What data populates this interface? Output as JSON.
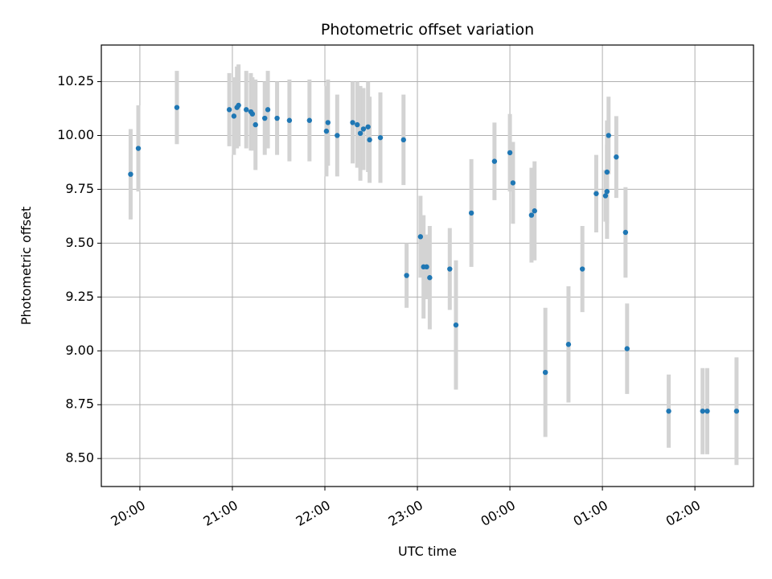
{
  "chart_data": {
    "type": "scatter",
    "title": "Photometric offset variation",
    "xlabel": "UTC time",
    "ylabel": "Photometric offset",
    "grid": true,
    "x_ticks": [
      "20:00",
      "21:00",
      "22:00",
      "23:00",
      "00:00",
      "01:00",
      "02:00"
    ],
    "y_ticks": [
      "8.50",
      "8.75",
      "9.00",
      "9.25",
      "9.50",
      "9.75",
      "10.00",
      "10.25"
    ],
    "xlim": [
      "19:35",
      "02:38"
    ],
    "ylim": [
      8.37,
      10.42
    ],
    "colors": {
      "point": "#1f77b4",
      "errorbar": "#d3d3d3",
      "grid": "#b0b0b0"
    },
    "series": [
      {
        "x": [
          "19:54",
          "19:59",
          "20:24",
          "20:58",
          "21:01",
          "21:03",
          "21:04",
          "21:09",
          "21:12",
          "21:13",
          "21:15",
          "21:21",
          "21:23",
          "21:29",
          "21:37",
          "21:50",
          "22:01",
          "22:02",
          "22:08",
          "22:18",
          "22:21",
          "22:23",
          "22:25",
          "22:28",
          "22:29",
          "22:36",
          "22:51",
          "22:53",
          "23:02",
          "23:04",
          "23:06",
          "23:08",
          "23:21",
          "23:25",
          "23:35",
          "23:50",
          "00:00",
          "00:02",
          "00:14",
          "00:16",
          "00:23",
          "00:38",
          "00:47",
          "00:56",
          "01:02",
          "01:03",
          "01:03",
          "01:04",
          "01:09",
          "01:15",
          "01:16",
          "01:43",
          "02:05",
          "02:08",
          "02:27"
        ],
        "y": [
          9.82,
          9.94,
          10.13,
          10.12,
          10.09,
          10.13,
          10.14,
          10.12,
          10.11,
          10.1,
          10.05,
          10.08,
          10.12,
          10.08,
          10.07,
          10.07,
          10.02,
          10.06,
          10.0,
          10.06,
          10.05,
          10.01,
          10.03,
          10.04,
          9.98,
          9.99,
          9.98,
          9.35,
          9.53,
          9.39,
          9.39,
          9.34,
          9.38,
          9.12,
          9.64,
          9.88,
          9.92,
          9.78,
          9.63,
          9.65,
          8.9,
          9.03,
          9.38,
          9.73,
          9.72,
          9.83,
          9.74,
          10.0,
          9.9,
          9.55,
          9.01,
          8.72,
          8.72,
          8.72,
          8.72
        ],
        "err": [
          0.21,
          0.2,
          0.17,
          0.17,
          0.18,
          0.19,
          0.19,
          0.18,
          0.18,
          0.17,
          0.21,
          0.17,
          0.18,
          0.17,
          0.19,
          0.19,
          0.21,
          0.2,
          0.19,
          0.19,
          0.2,
          0.22,
          0.19,
          0.21,
          0.2,
          0.21,
          0.21,
          0.15,
          0.19,
          0.24,
          0.15,
          0.24,
          0.19,
          0.3,
          0.25,
          0.18,
          0.18,
          0.19,
          0.22,
          0.23,
          0.3,
          0.27,
          0.2,
          0.18,
          0.12,
          0.24,
          0.22,
          0.18,
          0.19,
          0.21,
          0.21,
          0.17,
          0.2,
          0.2,
          0.25
        ]
      }
    ]
  }
}
